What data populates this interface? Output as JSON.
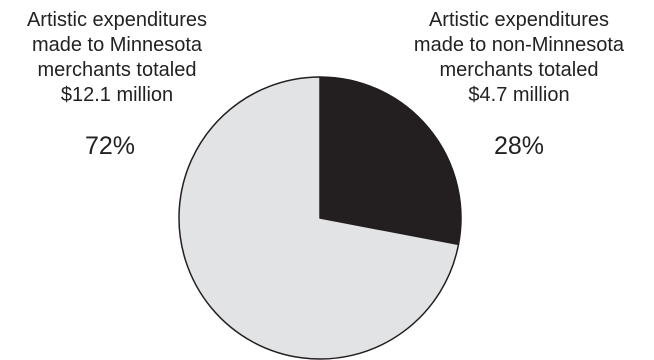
{
  "chart_data": {
    "type": "pie",
    "series": [
      {
        "values": [
          28,
          72
        ]
      }
    ],
    "slices": [
      {
        "lines": [
          "Artistic expenditures",
          "made to non-Minnesota",
          "merchants totaled",
          "$4.7 million"
        ],
        "value": 28,
        "percent_label": "28%",
        "color": "#231f20"
      },
      {
        "lines": [
          "Artistic expenditures",
          "made to Minnesota",
          "merchants totaled",
          "$12.1 million"
        ],
        "value": 72,
        "percent_label": "72%",
        "color": "#e2e3e4"
      }
    ],
    "start_angle": "12 o'clock",
    "direction": "clockwise",
    "legend": "none"
  }
}
